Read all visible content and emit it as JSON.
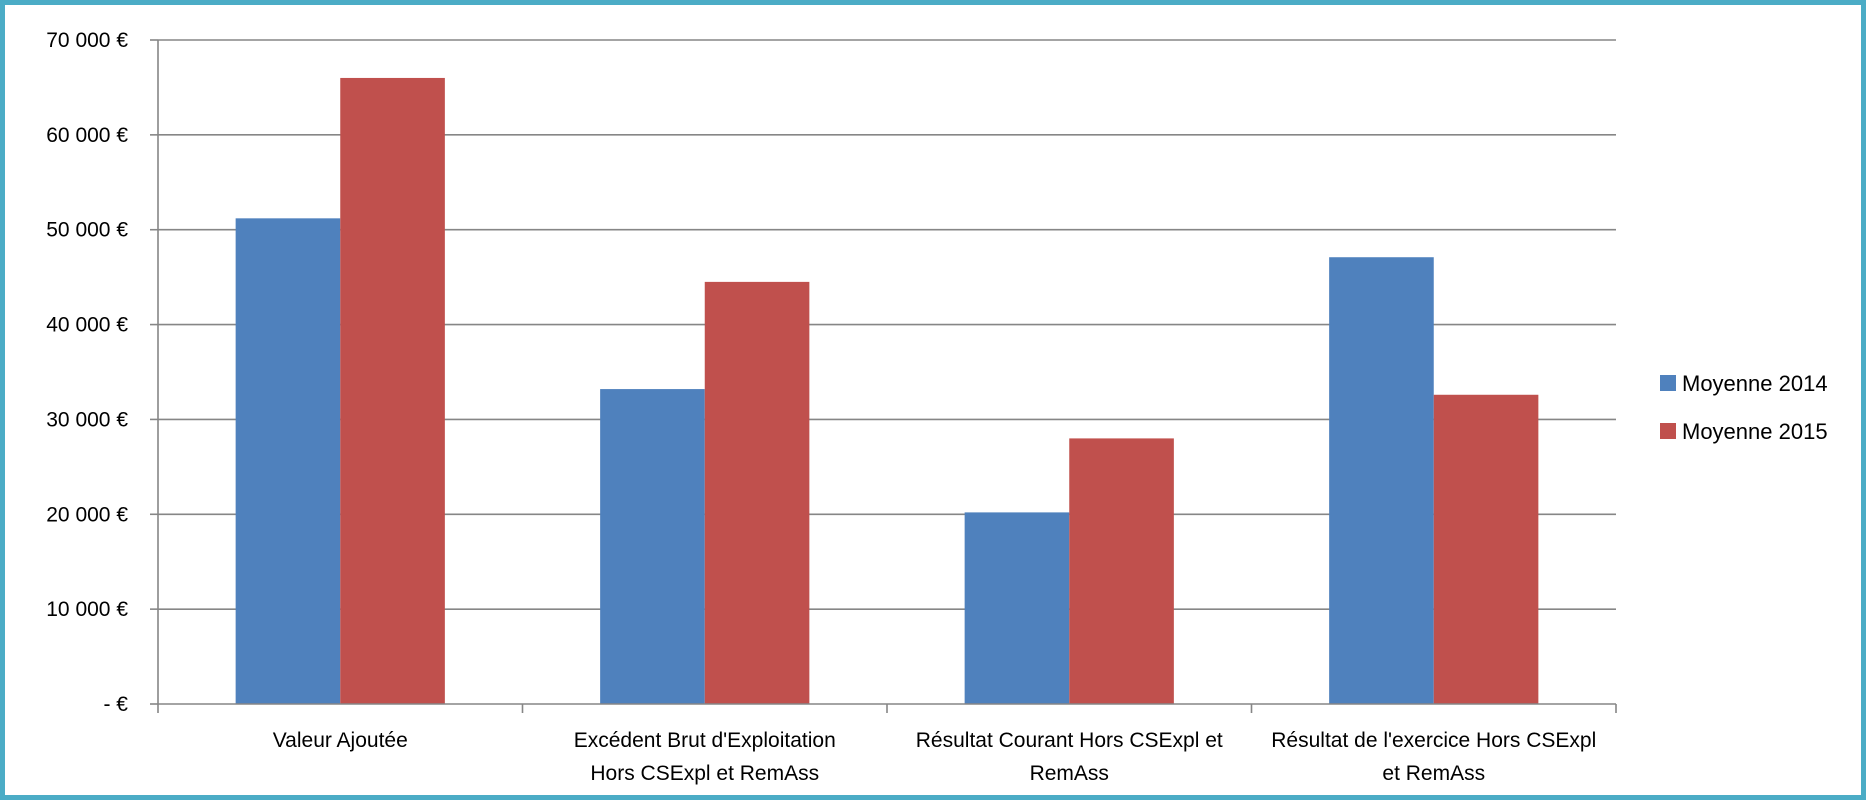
{
  "chart_data": {
    "type": "bar",
    "title": "",
    "xlabel": "",
    "ylabel": "",
    "categories": [
      [
        "Valeur Ajoutée"
      ],
      [
        "Excédent Brut d'Exploitation",
        "Hors CSExpl et RemAss"
      ],
      [
        "Résultat Courant Hors CSExpl et",
        "RemAss"
      ],
      [
        "Résultat de l'exercice Hors CSExpl",
        "et RemAss"
      ]
    ],
    "series": [
      {
        "name": "Moyenne 2014",
        "color": "#4f81bd",
        "values": [
          51200,
          33200,
          20200,
          47100
        ]
      },
      {
        "name": "Moyenne 2015",
        "color": "#c0504d",
        "values": [
          66000,
          44500,
          28000,
          32600
        ]
      }
    ],
    "ylim": [
      0,
      70000
    ],
    "yticks": [
      0,
      10000,
      20000,
      30000,
      40000,
      50000,
      60000,
      70000
    ],
    "ytick_labels": [
      "-  €",
      "10 000 €",
      "20 000 €",
      "30 000 €",
      "40 000 €",
      "50 000 €",
      "60 000 €",
      "70 000 €"
    ],
    "grid": true,
    "legend_position": "right"
  }
}
